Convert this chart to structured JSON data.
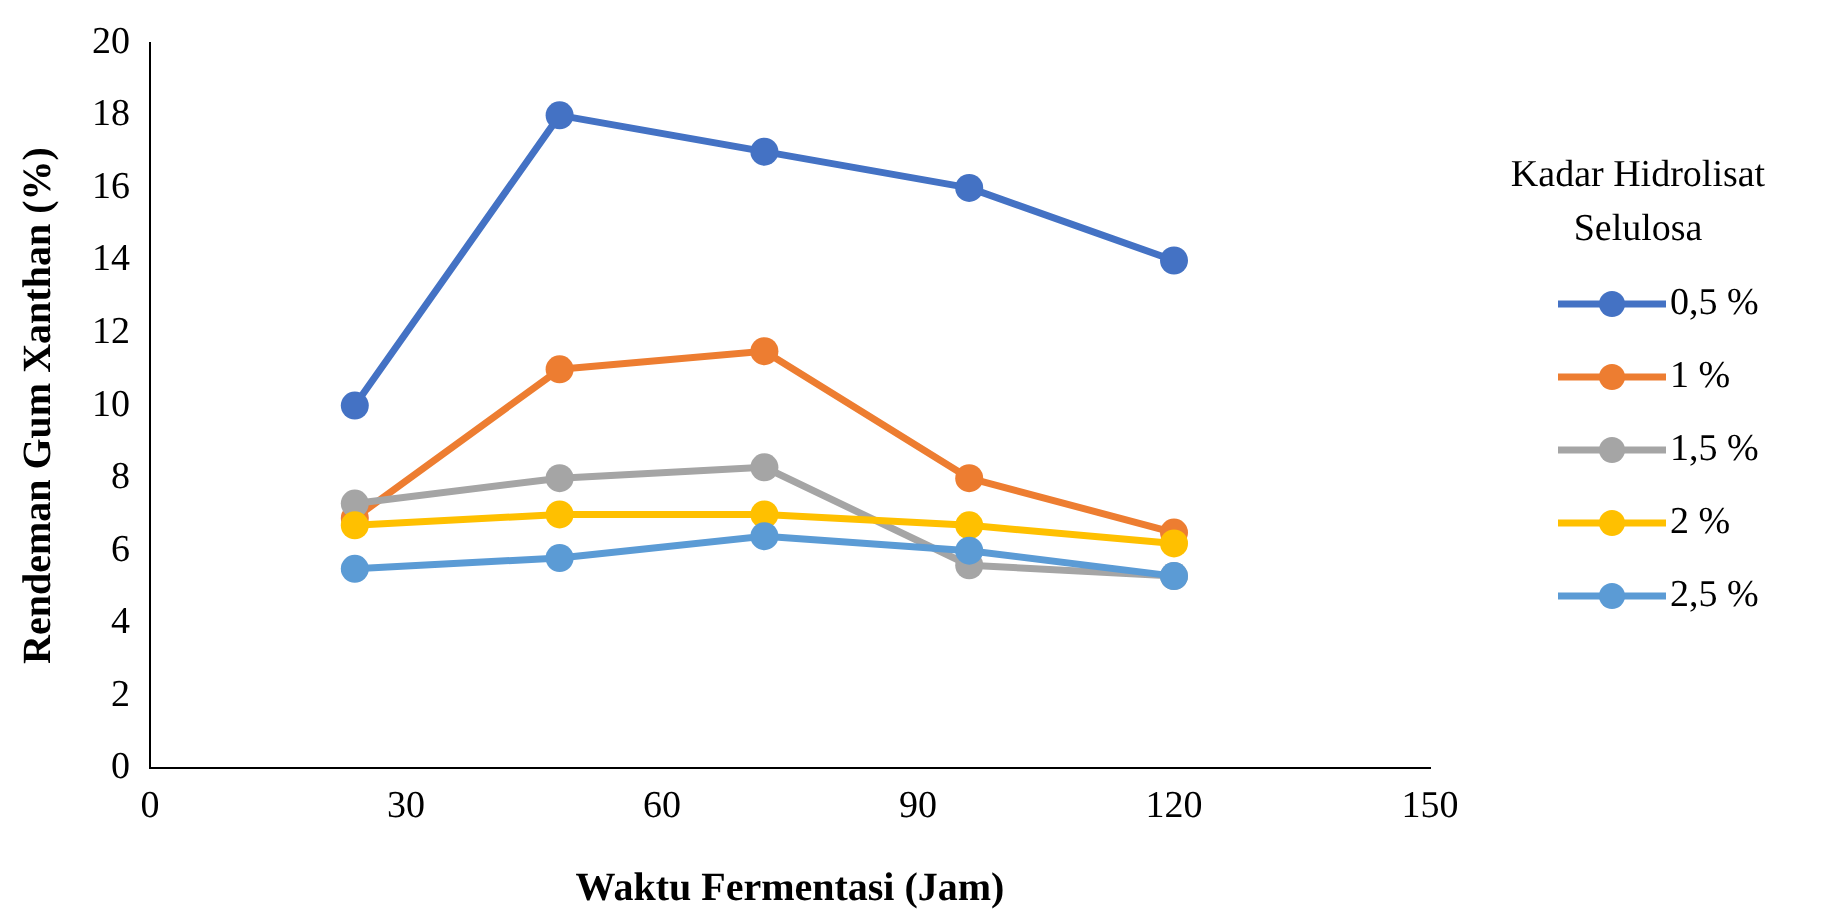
{
  "chart_data": {
    "type": "line",
    "xlabel": "Waktu Fermentasi (Jam)",
    "ylabel": "Rendeman Gum Xanthan (%)",
    "legend_title": "Kadar Hidrolisat Selulosa",
    "x": [
      24,
      48,
      72,
      96,
      120
    ],
    "series": [
      {
        "name": "0,5 %",
        "color": "#4472c4",
        "values": [
          10.0,
          18.0,
          17.0,
          16.0,
          14.0
        ]
      },
      {
        "name": "1 %",
        "color": "#ed7d31",
        "values": [
          6.9,
          11.0,
          11.5,
          8.0,
          6.5
        ]
      },
      {
        "name": "1,5 %",
        "color": "#a5a5a5",
        "values": [
          7.3,
          8.0,
          8.3,
          5.6,
          5.3
        ]
      },
      {
        "name": "2 %",
        "color": "#ffc000",
        "values": [
          6.7,
          7.0,
          7.0,
          6.7,
          6.2
        ]
      },
      {
        "name": "2,5 %",
        "color": "#5b9bd5",
        "values": [
          5.5,
          5.8,
          6.4,
          6.0,
          5.3
        ]
      }
    ],
    "xlim": [
      0,
      150
    ],
    "xticks": [
      0,
      30,
      60,
      90,
      120,
      150
    ],
    "ylim": [
      0,
      20
    ],
    "yticks": [
      0,
      2,
      4,
      6,
      8,
      10,
      12,
      14,
      16,
      18,
      20
    ],
    "grid": false,
    "legend": "right",
    "marker": "circle",
    "line_style": "solid"
  }
}
